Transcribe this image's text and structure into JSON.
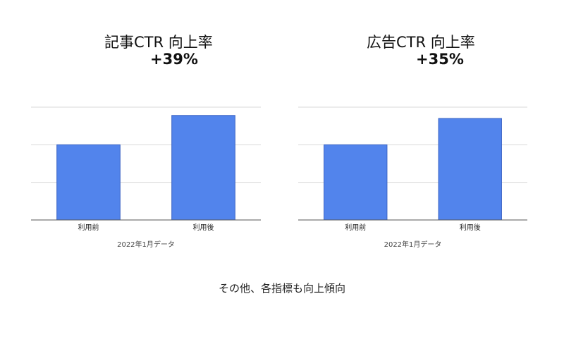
{
  "chart_data": [
    {
      "type": "bar",
      "title": "記事CTR 向上率",
      "subtitle": "+39%",
      "categories": [
        "利用前",
        "利用後"
      ],
      "values": [
        100,
        139
      ],
      "xlabel": "2022年1月データ",
      "ylabel": "",
      "ylim": [
        0,
        150
      ],
      "grid": true,
      "bar_color": "#5284ec"
    },
    {
      "type": "bar",
      "title": "広告CTR 向上率",
      "subtitle": "+35%",
      "categories": [
        "利用前",
        "利用後"
      ],
      "values": [
        100,
        135
      ],
      "xlabel": "2022年1月データ",
      "ylabel": "",
      "ylim": [
        0,
        150
      ],
      "grid": true,
      "bar_color": "#5284ec"
    }
  ],
  "footer": {
    "text": "その他、各指標も向上傾向"
  }
}
